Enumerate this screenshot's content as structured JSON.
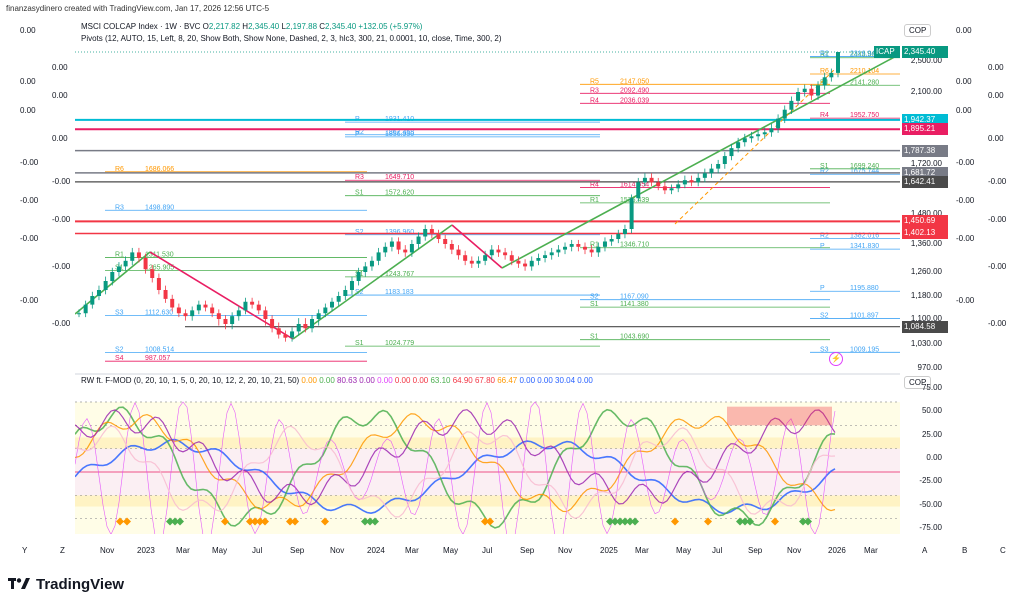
{
  "header": {
    "text": "finanzasydinero created with TradingView.com, Jan 17, 2026 12:56 UTC-5"
  },
  "symbol": {
    "name": "MSCI COLCAP Index · 1W · BVC",
    "o_label": "O",
    "o": "2,217.82",
    "h_label": "H",
    "h": "2,345.40",
    "l_label": "L",
    "l": "2,197.88",
    "c_label": "C",
    "c": "2,345.40",
    "change": "+132.05 (+5.97%)"
  },
  "pivots_legend": "Pivots (12, AUTO, 15, Left, 8, 20, Show Both, Show None, Dashed, 2, 3, hlc3, 300, 21, 0.0001, 10, close, Time, 300, 2)",
  "oscillator_legend": {
    "name": "RW ft. F-MOD (0, 20, 10, 1, 5, 0, 20, 10, 12, 2, 20, 10, 21, 50)",
    "values": [
      {
        "v": "0.00",
        "color": "#ff9800"
      },
      {
        "v": "0.00",
        "color": "#4caf50"
      },
      {
        "v": "80.63",
        "color": "#9c27b0"
      },
      {
        "v": "0.00",
        "color": "#9c27b0"
      },
      {
        "v": "0.00",
        "color": "#e040fb"
      },
      {
        "v": "0.00",
        "color": "#f23645"
      },
      {
        "v": "0.00",
        "color": "#f23645"
      },
      {
        "v": "63.10",
        "color": "#4caf50"
      },
      {
        "v": "64.90",
        "color": "#f23645"
      },
      {
        "v": "67.80",
        "color": "#f23645"
      },
      {
        "v": "66.47",
        "color": "#ff9800"
      },
      {
        "v": "0.00",
        "color": "#2962ff"
      },
      {
        "v": "0.00",
        "color": "#2962ff"
      },
      {
        "v": "30.04",
        "color": "#2962ff"
      },
      {
        "v": "0.00",
        "color": "#2962ff"
      }
    ]
  },
  "currency": "COP",
  "currency2": "COP",
  "icap_tag": "ICAP",
  "price_axis": [
    "2,500.00",
    "2,100.00",
    "1,720.00",
    "1,480.00",
    "1,360.00",
    "1,260.00",
    "1,180.00",
    "1,100.00",
    "1,030.00",
    "970.00"
  ],
  "price_tags": [
    {
      "v": "2,345.40",
      "color": "#089981"
    },
    {
      "v": "1,942.37",
      "color": "#00bcd4"
    },
    {
      "v": "1,895.21",
      "color": "#e91e63"
    },
    {
      "v": "1,787.38",
      "color": "#787b86"
    },
    {
      "v": "1,681.72",
      "color": "#787b86"
    },
    {
      "v": "1,642.41",
      "color": "#4a4a4a"
    },
    {
      "v": "1,450.69",
      "color": "#f23645"
    },
    {
      "v": "1,402.13",
      "color": "#f23645"
    },
    {
      "v": "1,084.58",
      "color": "#4a4a4a"
    }
  ],
  "osc_axis": [
    "75.00",
    "50.00",
    "25.00",
    "0.00",
    "-25.00",
    "-50.00",
    "-75.00"
  ],
  "left_scale": [
    "0.00",
    "0.00",
    "0.00",
    "0.00",
    "0.00",
    "0.00",
    "-0.00",
    "-0.00",
    "-0.00",
    "-0.00",
    "-0.00",
    "-0.00",
    "-0.00",
    "-0.00"
  ],
  "right_scale": [
    "0.00",
    "0.00",
    "0.00",
    "0.00",
    "0.00",
    "0.00",
    "-0.00",
    "-0.00",
    "-0.00",
    "-0.00",
    "-0.00",
    "-0.00",
    "-0.00",
    "-0.00"
  ],
  "pivot_labels": [
    {
      "t": "R1",
      "v": "2443.560",
      "c": "#4caf50"
    },
    {
      "t": "R2",
      "v": "2316.940",
      "c": "#42a5f5"
    },
    {
      "t": "R1",
      "v": "2141.280",
      "c": "#4caf50"
    },
    {
      "t": "R6",
      "v": "2210.104",
      "c": "#ff9800"
    },
    {
      "t": "R5",
      "v": "2147.050",
      "c": "#ff9800"
    },
    {
      "t": "R3",
      "v": "2092.490",
      "c": "#e91e63"
    },
    {
      "t": "R4",
      "v": "2036.039",
      "c": "#e91e63"
    },
    {
      "t": "R4",
      "v": "1952.750",
      "c": "#e91e63"
    },
    {
      "t": "R2",
      "v": "1867.458",
      "c": "#42a5f5"
    },
    {
      "t": "P",
      "v": "1931.410",
      "c": "#42a5f5"
    },
    {
      "t": "P",
      "v": "1856.950",
      "c": "#42a5f5"
    },
    {
      "t": "R2",
      "v": "1675.744",
      "c": "#42a5f5"
    },
    {
      "t": "R6",
      "v": "1686.066",
      "c": "#ff9800"
    },
    {
      "t": "R3",
      "v": "1649.710",
      "c": "#e91e63"
    },
    {
      "t": "R4",
      "v": "1614.554",
      "c": "#e91e63"
    },
    {
      "t": "S1",
      "v": "1699.240",
      "c": "#4caf50"
    },
    {
      "t": "S1",
      "v": "1572.620",
      "c": "#4caf50"
    },
    {
      "t": "R1",
      "v": "1536.439",
      "c": "#4caf50"
    },
    {
      "t": "R3",
      "v": "1498.890",
      "c": "#42a5f5"
    },
    {
      "t": "R2",
      "v": "1382.016",
      "c": "#42a5f5"
    },
    {
      "t": "R1",
      "v": "1346.710",
      "c": "#4caf50"
    },
    {
      "t": "R1",
      "v": "1311.530",
      "c": "#4caf50"
    },
    {
      "t": "S2",
      "v": "1396.960",
      "c": "#42a5f5"
    },
    {
      "t": "P",
      "v": "1341.830",
      "c": "#42a5f5"
    },
    {
      "t": "S1",
      "v": "1265.905",
      "c": "#4caf50"
    },
    {
      "t": "S1",
      "v": "1243.767",
      "c": "#4caf50"
    },
    {
      "t": "S1",
      "v": "1141.380",
      "c": "#4caf50"
    },
    {
      "t": "P",
      "v": "1195.880",
      "c": "#42a5f5"
    },
    {
      "t": "S2",
      "v": "1183.183",
      "c": "#42a5f5"
    },
    {
      "t": "S2",
      "v": "1167.090",
      "c": "#42a5f5"
    },
    {
      "t": "S3",
      "v": "1112.630",
      "c": "#42a5f5"
    },
    {
      "t": "S2",
      "v": "1101.897",
      "c": "#42a5f5"
    },
    {
      "t": "S1",
      "v": "1043.690",
      "c": "#4caf50"
    },
    {
      "t": "S2",
      "v": "1008.514",
      "c": "#42a5f5"
    },
    {
      "t": "S1",
      "v": "1024.779",
      "c": "#4caf50"
    },
    {
      "t": "S3",
      "v": "1009.195",
      "c": "#42a5f5"
    },
    {
      "t": "S4",
      "v": "987.057",
      "c": "#e91e63"
    }
  ],
  "time_axis": [
    "Y",
    "Z",
    "Nov",
    "2023",
    "Mar",
    "May",
    "Jul",
    "Sep",
    "Nov",
    "2024",
    "Mar",
    "May",
    "Jul",
    "Sep",
    "Nov",
    "2025",
    "Mar",
    "May",
    "Jul",
    "Sep",
    "Nov",
    "2026",
    "Mar",
    "A",
    "B",
    "C"
  ],
  "footer": {
    "brand": "TradingView"
  },
  "colors": {
    "up": "#089981",
    "down": "#f23645",
    "trend_up": "#4caf50",
    "trend_down": "#e91e63"
  }
}
